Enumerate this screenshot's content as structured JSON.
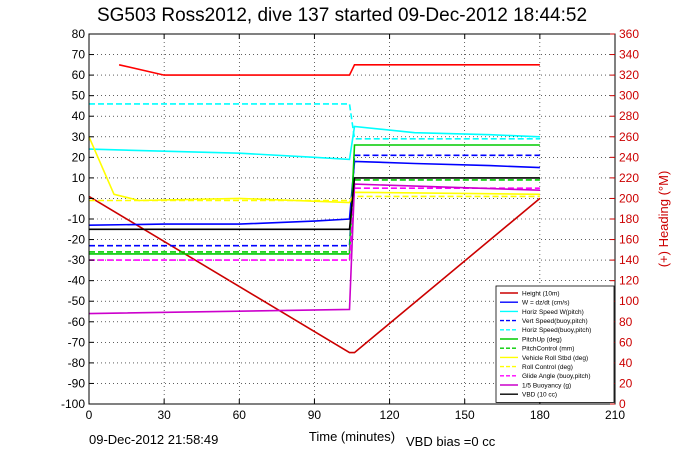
{
  "chart_data": {
    "type": "line",
    "title": "SG503 Ross2012, dive 137 started 09-Dec-2012 18:44:52",
    "xlabel": "Time (minutes)",
    "ylabel": "",
    "y2label": "(+) Heading (°M)",
    "xlim": [
      0,
      210
    ],
    "ylim": [
      -100,
      80
    ],
    "y2lim": [
      0,
      360
    ],
    "xticks": [
      "0",
      "30",
      "60",
      "90",
      "120",
      "150",
      "180",
      "210"
    ],
    "yticks": [
      "80",
      "70",
      "60",
      "50",
      "40",
      "30",
      "20",
      "10",
      "0",
      "-10",
      "-20",
      "-30",
      "-40",
      "-50",
      "-60",
      "-70",
      "-80",
      "-90",
      "-100"
    ],
    "y2ticks": [
      "360",
      "340",
      "320",
      "300",
      "280",
      "260",
      "240",
      "220",
      "200",
      "180",
      "160",
      "140",
      "120",
      "100",
      "80",
      "60",
      "40",
      "20",
      "0"
    ],
    "grid": true,
    "legend_position": "bottom-right",
    "footer_left": "09-Dec-2012 21:58:49",
    "footer_right": "VBD bias =0 cc",
    "series": [
      {
        "name": "Height (10m)",
        "color": "#cc0000",
        "style": "solid",
        "x": [
          0,
          104,
          106,
          180
        ],
        "y": [
          1,
          -75,
          -75,
          0
        ]
      },
      {
        "name": "W = dz/dt (cm/s)",
        "color": "#0000ff",
        "style": "solid",
        "x": [
          0,
          30,
          60,
          90,
          104,
          106,
          130,
          160,
          180
        ],
        "y": [
          -13,
          -12.5,
          -12.5,
          -11,
          -10,
          18,
          17,
          16,
          15
        ]
      },
      {
        "name": "Horiz Speed W(pitch)",
        "color": "#00ffff",
        "style": "solid",
        "x": [
          0,
          30,
          60,
          90,
          104,
          106,
          130,
          160,
          180
        ],
        "y": [
          24,
          23,
          22,
          20,
          19,
          35,
          32,
          31,
          30
        ]
      },
      {
        "name": "Vert Speed(buoy,pitch)",
        "color": "#0000ff",
        "style": "dashed",
        "x": [
          0,
          104,
          106,
          180
        ],
        "y": [
          -23,
          -23,
          21,
          21
        ]
      },
      {
        "name": "Horiz Speed(buoy,pitch)",
        "color": "#00ffff",
        "style": "dashed",
        "x": [
          0,
          104,
          106,
          180
        ],
        "y": [
          46,
          46,
          29,
          29
        ]
      },
      {
        "name": "PitchUp (deg)",
        "color": "#00cc00",
        "style": "solid",
        "x": [
          0,
          104,
          106,
          180
        ],
        "y": [
          -27,
          -27,
          26,
          26
        ]
      },
      {
        "name": "PitchControl (mm)",
        "color": "#00cc00",
        "style": "dashed",
        "x": [
          0,
          104,
          106,
          180
        ],
        "y": [
          -26,
          -26,
          9,
          9
        ]
      },
      {
        "name": "Vehicle Roll Stbd (deg)",
        "color": "#ffff00",
        "style": "solid",
        "x": [
          0,
          10,
          20,
          60,
          104,
          106,
          180
        ],
        "y": [
          30,
          2,
          -1,
          0,
          -2,
          3,
          2
        ]
      },
      {
        "name": "Roll Control (deg)",
        "color": "#ffff00",
        "style": "dashed",
        "x": [
          0,
          104,
          106,
          180
        ],
        "y": [
          -1,
          -1,
          1,
          1
        ]
      },
      {
        "name": "Glide Angle (buoy,pitch)",
        "color": "#ff00ff",
        "style": "dashed",
        "x": [
          0,
          104,
          106,
          180
        ],
        "y": [
          -30,
          -30,
          5,
          5
        ]
      },
      {
        "name": "1/5 Buoyancy (g)",
        "color": "#cc00cc",
        "style": "solid",
        "x": [
          0,
          104,
          106,
          180
        ],
        "y": [
          -56,
          -54,
          7,
          4
        ]
      },
      {
        "name": "VBD (10 cc)",
        "color": "#000000",
        "style": "solid",
        "x": [
          0,
          104,
          106,
          180
        ],
        "y": [
          -15,
          -15,
          10,
          10
        ]
      },
      {
        "name": "Heading",
        "axis": "y2",
        "color": "#ff0000",
        "style": "solid",
        "x": [
          12,
          30,
          60,
          90,
          104,
          106,
          180
        ],
        "y": [
          330,
          320,
          320,
          320,
          320,
          330,
          330
        ]
      }
    ]
  }
}
